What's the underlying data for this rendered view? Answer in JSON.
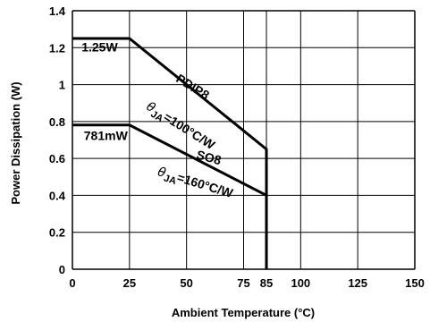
{
  "chart_data": {
    "type": "line",
    "title": "",
    "xlabel": "Ambient Temperature (°C)",
    "ylabel": "Power Dissipation (W)",
    "xlim": [
      0,
      150
    ],
    "ylim": [
      0,
      1.4
    ],
    "x_ticks": [
      0,
      25,
      50,
      75,
      85,
      100,
      125,
      150
    ],
    "x_tick_labels": [
      "0",
      "25",
      "50",
      "75",
      "85",
      "100",
      "125",
      "150"
    ],
    "y_ticks": [
      0,
      0.2,
      0.4,
      0.6,
      0.8,
      1.0,
      1.2,
      1.4
    ],
    "y_tick_labels": [
      "0",
      "0.2",
      "0.4",
      "0.6",
      "0.8",
      "1",
      "1.2",
      "1.4"
    ],
    "grid": true,
    "series": [
      {
        "name": "PDIP8",
        "x": [
          0,
          25,
          85,
          85
        ],
        "y": [
          1.25,
          1.25,
          0.65,
          0
        ],
        "color": "#000000"
      },
      {
        "name": "SO8",
        "x": [
          0,
          25,
          85,
          85
        ],
        "y": [
          0.781,
          0.781,
          0.4,
          0
        ],
        "color": "#000000"
      }
    ],
    "annotations": [
      {
        "id": "pdip-power",
        "text": "1.25W",
        "x": 4,
        "y": 1.18
      },
      {
        "id": "pdip-name",
        "text": "PDIP8",
        "x": 45,
        "y": 1.02,
        "rotate": 32
      },
      {
        "id": "pdip-theta",
        "text": "θJA=100°C/W",
        "theta": "θ",
        "sub": "JA",
        "rest": "=100°C/W",
        "x": 32,
        "y": 0.87,
        "rotate": 32
      },
      {
        "id": "so-power",
        "text": "781mW",
        "x": 5,
        "y": 0.7,
        "rotate": 0
      },
      {
        "id": "so-name",
        "text": "SO8",
        "x": 54,
        "y": 0.6,
        "rotate": 15
      },
      {
        "id": "so-theta",
        "text": "θJA=160°C/W",
        "theta": "θ",
        "sub": "JA",
        "rest": "=160°C/W",
        "x": 37,
        "y": 0.51,
        "rotate": 17
      }
    ]
  }
}
